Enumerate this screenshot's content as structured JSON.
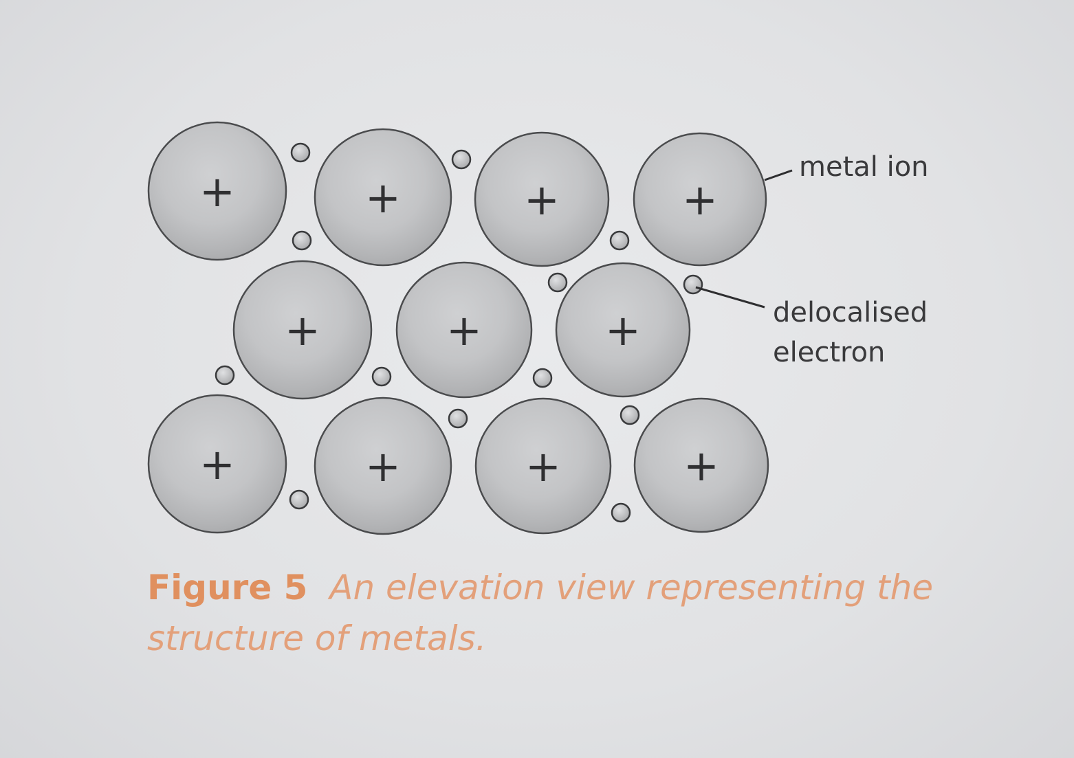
{
  "labels": {
    "metal_ion": "metal ion",
    "delocalised_line1": "delocalised",
    "delocalised_line2": "electron"
  },
  "ion_symbol": "+",
  "caption": {
    "figure_number": "Figure 5",
    "text": "An elevation view representing the structure of metals."
  },
  "colors": {
    "ion_fill": "#bfc0c2",
    "ion_outline": "#4a4b4d",
    "electron_fill": "#c4c5c7",
    "caption": "#e0956a",
    "background": "#e2e3e5"
  }
}
